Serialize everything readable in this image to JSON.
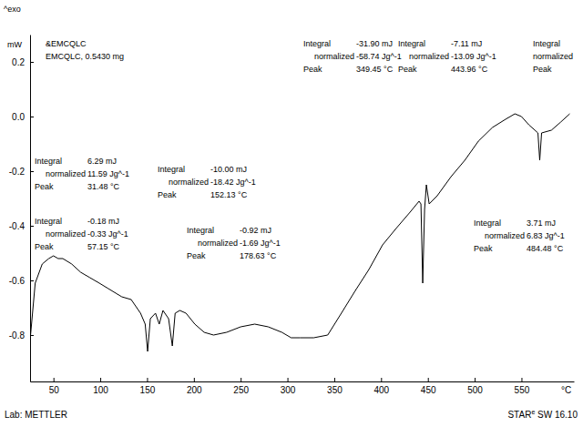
{
  "chart_data": {
    "type": "line",
    "color": "#000000",
    "grid": false,
    "exo_label": "^exo",
    "ylabel": "mW",
    "xlabel": "°C",
    "sample": [
      "&EMCQLC",
      "EMCQLC, 0.5430 mg"
    ],
    "footer_left": "Lab: METTLER",
    "footer_right": {
      "name": "STAR",
      "mark": "e",
      "version": "SW 16.10"
    },
    "xlim": [
      25,
      606
    ],
    "xticks": [
      50,
      100,
      150,
      200,
      250,
      300,
      350,
      400,
      450,
      500,
      550
    ],
    "ylim": [
      -0.97,
      0.3
    ],
    "yticks": [
      0.2,
      {
        "value": 0,
        "label": "0.0"
      },
      -0.2,
      -0.4,
      -0.6,
      -0.8
    ],
    "x": [
      25,
      30.5,
      38,
      45,
      50,
      55,
      60,
      69.5,
      79,
      89,
      99,
      108.6,
      123,
      133,
      143,
      148,
      150.6,
      153.5,
      159,
      163,
      167,
      173,
      177,
      180,
      185,
      191.6,
      201,
      211,
      221,
      235,
      250,
      265,
      279.5,
      294,
      304,
      313.6,
      328,
      343,
      357.6,
      372,
      387,
      401.6,
      416,
      431,
      440.6,
      442.6,
      444.5,
      446.5,
      448.4,
      451.4,
      460,
      474.8,
      489.5,
      504,
      519,
      533,
      543,
      550,
      557.8,
      567.6,
      569.5,
      571.5,
      582,
      592,
      601.6
    ],
    "values": [
      -0.82,
      -0.61,
      -0.54,
      -0.52,
      -0.51,
      -0.52,
      -0.52,
      -0.54,
      -0.57,
      -0.59,
      -0.61,
      -0.63,
      -0.66,
      -0.67,
      -0.72,
      -0.76,
      -0.86,
      -0.74,
      -0.72,
      -0.76,
      -0.71,
      -0.74,
      -0.84,
      -0.72,
      -0.71,
      -0.72,
      -0.76,
      -0.79,
      -0.8,
      -0.79,
      -0.77,
      -0.76,
      -0.77,
      -0.79,
      -0.81,
      -0.81,
      -0.81,
      -0.8,
      -0.72,
      -0.64,
      -0.56,
      -0.47,
      -0.41,
      -0.35,
      -0.31,
      -0.32,
      -0.61,
      -0.34,
      -0.25,
      -0.32,
      -0.29,
      -0.22,
      -0.16,
      -0.09,
      -0.04,
      -0.01,
      0.01,
      0.0,
      -0.03,
      -0.06,
      -0.16,
      -0.06,
      -0.05,
      -0.02,
      0.01
    ],
    "annotations": [
      {
        "lines": [
          [
            "Integral",
            "-0.18 mJ"
          ],
          [
            "normalized",
            "-0.33 Jg^-1"
          ],
          [
            "Peak",
            "57.15 °C"
          ]
        ]
      },
      {
        "lines": [
          [
            "Integral",
            "6.29 mJ"
          ],
          [
            "normalized",
            "11.59 Jg^-1"
          ],
          [
            "Peak",
            "31.48 °C"
          ]
        ]
      },
      {
        "lines": [
          [
            "Integral",
            "-10.00 mJ"
          ],
          [
            "normalized",
            "-18.42 Jg^-1"
          ],
          [
            "Peak",
            "152.13 °C"
          ]
        ]
      },
      {
        "lines": [
          [
            "Integral",
            "-0.92 mJ"
          ],
          [
            "normalized",
            "-1.69 Jg^-1"
          ],
          [
            "Peak",
            "178.63 °C"
          ]
        ]
      },
      {
        "lines": [
          [
            "Integral",
            "-31.90 mJ"
          ],
          [
            "normalized",
            "-58.74 Jg^-1"
          ],
          [
            "Peak",
            "349.45 °C"
          ]
        ]
      },
      {
        "lines": [
          [
            "Integral",
            "-7.11 mJ"
          ],
          [
            "normalized",
            "-13.09 Jg^-1"
          ],
          [
            "Peak",
            "443.96 °C"
          ]
        ]
      },
      {
        "lines": [
          [
            "Integral",
            "3.71 mJ"
          ],
          [
            "normalized",
            "6.83 Jg^-1"
          ],
          [
            "Peak",
            "484.48 °C"
          ]
        ]
      },
      {
        "lines": [
          [
            "Integral"
          ],
          [
            "normalized"
          ],
          [
            "Peak"
          ]
        ]
      }
    ]
  }
}
